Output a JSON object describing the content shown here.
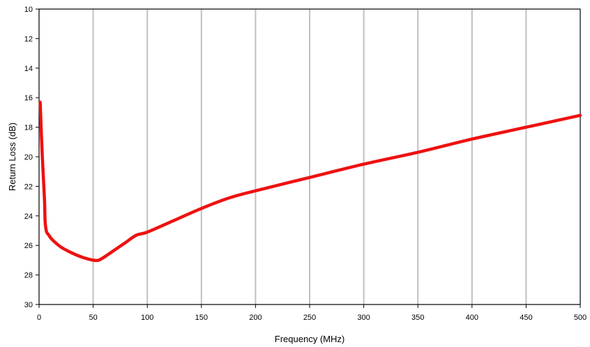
{
  "chart_data": {
    "type": "line",
    "title": "",
    "xlabel": "Frequency (MHz)",
    "ylabel": "Return Loss (dB)",
    "xlim": [
      0,
      500
    ],
    "ylim": [
      10,
      30
    ],
    "y_inverted": true,
    "x_ticks": [
      0,
      50,
      100,
      150,
      200,
      250,
      300,
      350,
      400,
      450,
      500
    ],
    "y_ticks": [
      10,
      12,
      14,
      16,
      18,
      20,
      22,
      24,
      26,
      28,
      30
    ],
    "grid": {
      "vertical": true,
      "horizontal": false
    },
    "legend": "none",
    "colors": {
      "line": "#ee1111",
      "grid": "#c0c0c0",
      "axis": "#000000"
    },
    "series": [
      {
        "x": [
          1,
          3,
          5,
          5.5,
          6,
          7,
          9,
          12,
          20,
          30,
          40,
          50,
          55,
          60,
          70,
          80,
          90,
          100,
          125,
          150,
          175,
          200,
          250,
          300,
          350,
          400,
          450,
          500
        ],
        "y": [
          16.3,
          20.0,
          22.9,
          24.2,
          24.7,
          25.1,
          25.3,
          25.6,
          26.1,
          26.5,
          26.8,
          27.0,
          27.0,
          26.8,
          26.3,
          25.8,
          25.3,
          25.1,
          24.3,
          23.5,
          22.8,
          22.3,
          21.4,
          20.5,
          19.7,
          18.8,
          18.0,
          17.2
        ]
      }
    ]
  }
}
